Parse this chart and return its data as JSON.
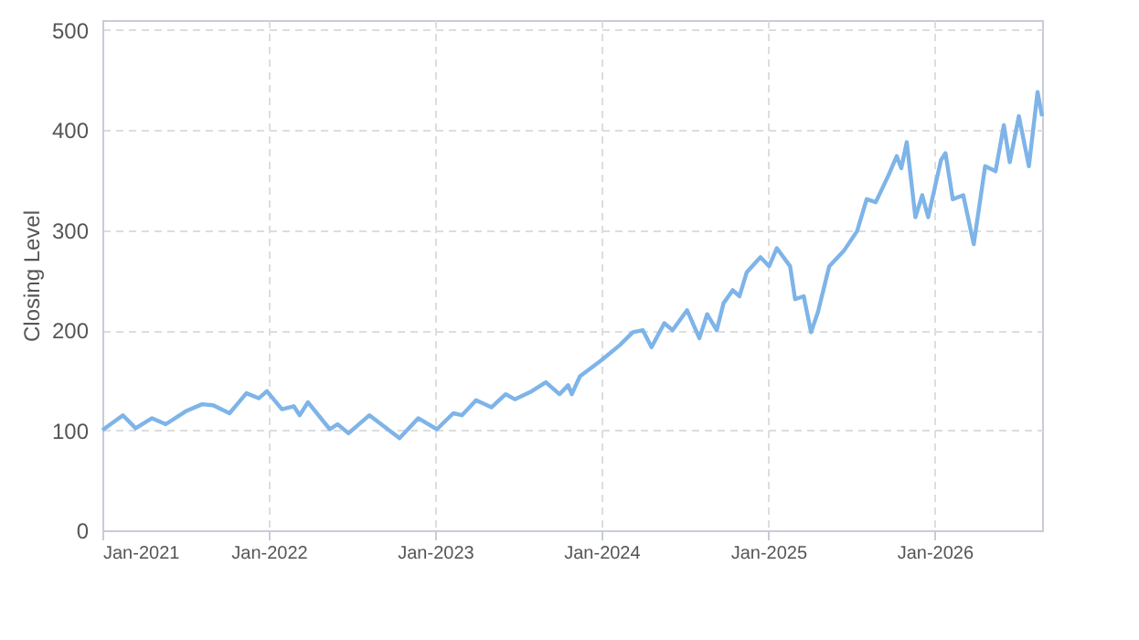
{
  "chart_data": {
    "type": "line",
    "ylabel": "Closing Level",
    "xlim": [
      "2021-01-01",
      "2026-08-25"
    ],
    "ylim": [
      0,
      510
    ],
    "yticks": [
      0,
      100,
      200,
      300,
      400,
      500
    ],
    "xticks": [
      {
        "value": "2021-01-01",
        "label": "Jan-2021"
      },
      {
        "value": "2022-01-01",
        "label": "Jan-2022"
      },
      {
        "value": "2023-01-01",
        "label": "Jan-2023"
      },
      {
        "value": "2024-01-01",
        "label": "Jan-2024"
      },
      {
        "value": "2025-01-01",
        "label": "Jan-2025"
      },
      {
        "value": "2026-01-01",
        "label": "Jan-2026"
      }
    ],
    "grid": true,
    "marker": "none",
    "line_style": "solid",
    "x": [
      "2021-01-01",
      "2021-02-15",
      "2021-03-15",
      "2021-04-20",
      "2021-05-20",
      "2021-07-03",
      "2021-08-08",
      "2021-09-01",
      "2021-10-07",
      "2021-11-13",
      "2021-12-10",
      "2021-12-28",
      "2022-01-30",
      "2022-02-25",
      "2022-03-10",
      "2022-03-28",
      "2022-05-15",
      "2022-06-01",
      "2022-06-25",
      "2022-08-10",
      "2022-10-15",
      "2022-11-25",
      "2023-01-05",
      "2023-02-10",
      "2023-03-01",
      "2023-04-01",
      "2023-05-05",
      "2023-06-05",
      "2023-06-25",
      "2023-08-01",
      "2023-09-01",
      "2023-10-01",
      "2023-10-20",
      "2023-10-28",
      "2023-11-15",
      "2024-01-01",
      "2024-02-10",
      "2024-03-10",
      "2024-04-01",
      "2024-04-20",
      "2024-05-18",
      "2024-06-05",
      "2024-07-07",
      "2024-08-03",
      "2024-08-20",
      "2024-09-10",
      "2024-09-25",
      "2024-10-15",
      "2024-10-30",
      "2024-11-15",
      "2024-12-15",
      "2025-01-03",
      "2025-01-20",
      "2025-02-18",
      "2025-03-01",
      "2025-03-20",
      "2025-04-05",
      "2025-04-20",
      "2025-05-15",
      "2025-06-17",
      "2025-07-15",
      "2025-08-05",
      "2025-08-25",
      "2025-09-22",
      "2025-10-10",
      "2025-10-20",
      "2025-11-01",
      "2025-11-20",
      "2025-12-05",
      "2025-12-18",
      "2026-01-15",
      "2026-01-25",
      "2026-02-10",
      "2026-03-05",
      "2026-03-28",
      "2026-04-22",
      "2026-05-15",
      "2026-06-02",
      "2026-06-15",
      "2026-07-05",
      "2026-07-27",
      "2026-08-15",
      "2026-08-25"
    ],
    "series": [
      {
        "color": "#7eb4e8",
        "values": [
          100,
          115,
          102,
          112,
          106,
          119,
          126,
          125,
          117,
          137,
          132,
          139,
          121,
          124,
          115,
          128,
          101,
          106,
          97,
          115,
          92,
          112,
          101,
          117,
          115,
          130,
          123,
          136,
          131,
          139,
          148,
          136,
          145,
          136,
          154,
          170,
          185,
          198,
          200,
          183,
          207,
          200,
          220,
          192,
          216,
          200,
          227,
          240,
          234,
          258,
          273,
          264,
          282,
          264,
          231,
          234,
          198,
          218,
          264,
          280,
          299,
          331,
          328,
          355,
          374,
          362,
          388,
          313,
          335,
          313,
          370,
          377,
          331,
          335,
          286,
          364,
          359,
          405,
          368,
          414,
          364,
          438,
          414
        ]
      }
    ]
  }
}
